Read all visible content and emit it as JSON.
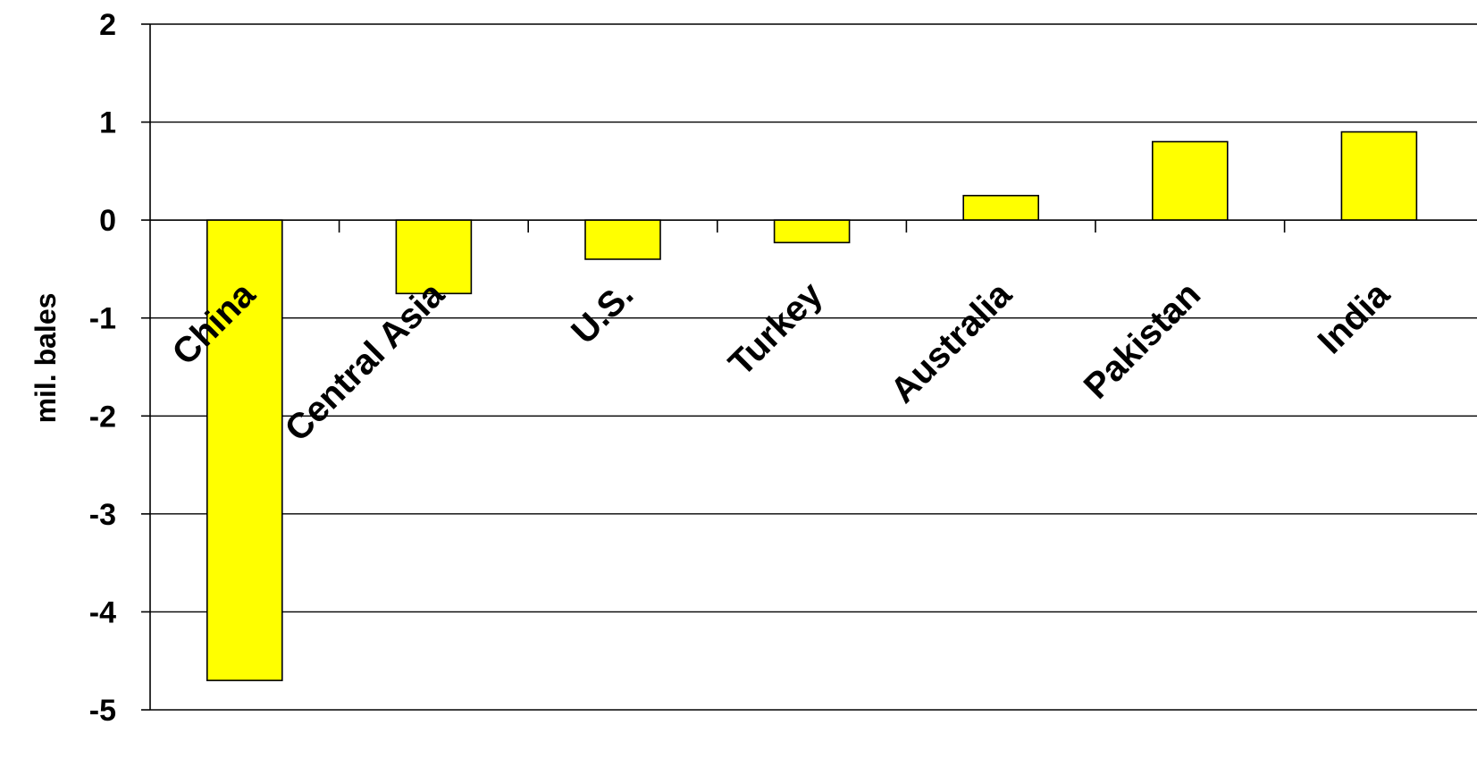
{
  "chart_data": {
    "type": "bar",
    "title": "",
    "xlabel": "",
    "ylabel": "mil. bales",
    "categories": [
      "China",
      "Central Asia",
      "U.S.",
      "Turkey",
      "Australia",
      "Pakistan",
      "India"
    ],
    "values": [
      -4.7,
      -0.75,
      -0.4,
      -0.23,
      0.25,
      0.8,
      0.9
    ],
    "ylim": [
      -5,
      2
    ],
    "yticks": [
      2,
      1,
      0,
      -1,
      -2,
      -3,
      -4,
      -5
    ],
    "grid": true,
    "legend": "none",
    "colors": {
      "bar_fill": "#FFFF00",
      "bar_stroke": "#000000",
      "gridline": "#000000"
    }
  }
}
